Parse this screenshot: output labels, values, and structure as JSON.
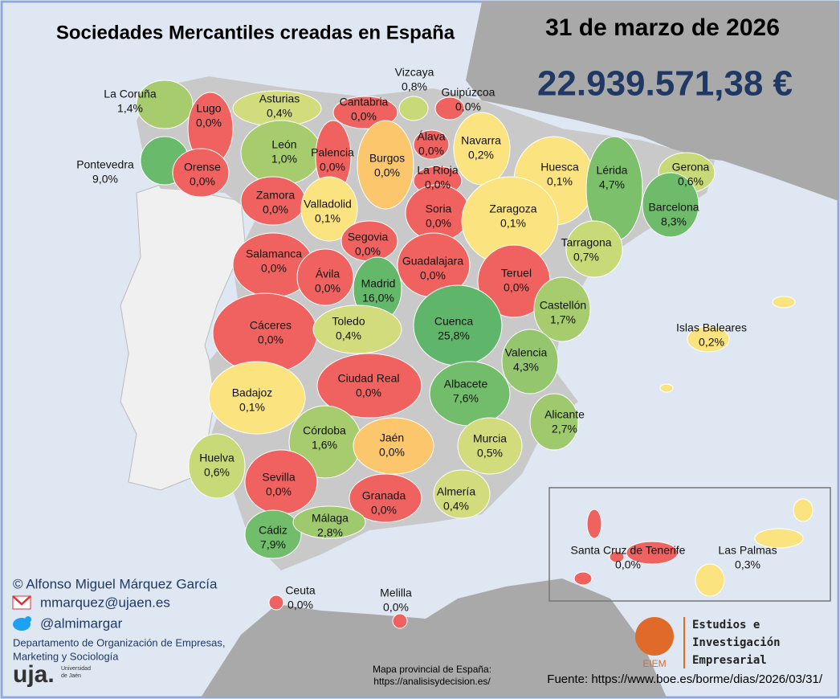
{
  "header": {
    "title": "Sociedades Mercantiles creadas en España",
    "date": "31 de marzo de 2026",
    "total": "22.939.571,38 €"
  },
  "provinces": [
    {
      "name": "La Coruña",
      "share": "1,4%",
      "color": "#a6cc6e"
    },
    {
      "name": "Lugo",
      "share": "0,0%",
      "color": "#f0625f"
    },
    {
      "name": "Asturias",
      "share": "0,4%",
      "color": "#d3dc7c"
    },
    {
      "name": "Cantabria",
      "share": "0,0%",
      "color": "#f0625f"
    },
    {
      "name": "Vizcaya",
      "share": "0,8%",
      "color": "#c8d978"
    },
    {
      "name": "Guipúzcoa",
      "share": "0,0%",
      "color": "#f0625f"
    },
    {
      "name": "Pontevedra",
      "share": "9,0%",
      "color": "#69ba6a"
    },
    {
      "name": "Orense",
      "share": "0,0%",
      "color": "#f0625f"
    },
    {
      "name": "León",
      "share": "1,0%",
      "color": "#a6cc6e"
    },
    {
      "name": "Palencia",
      "share": "0,0%",
      "color": "#f0625f"
    },
    {
      "name": "Burgos",
      "share": "0,0%",
      "color": "#fbc66c"
    },
    {
      "name": "Álava",
      "share": "0,0%",
      "color": "#f0625f"
    },
    {
      "name": "Navarra",
      "share": "0,2%",
      "color": "#fbe37f"
    },
    {
      "name": "La Rioja",
      "share": "0,0%",
      "color": "#f0625f"
    },
    {
      "name": "Huesca",
      "share": "0,1%",
      "color": "#fbe37f"
    },
    {
      "name": "Lérida",
      "share": "4,7%",
      "color": "#7cc06c"
    },
    {
      "name": "Gerona",
      "share": "0,6%",
      "color": "#c8d978"
    },
    {
      "name": "Barcelona",
      "share": "8,3%",
      "color": "#6dbb6b"
    },
    {
      "name": "Zamora",
      "share": "0,0%",
      "color": "#f0625f"
    },
    {
      "name": "Valladolid",
      "share": "0,1%",
      "color": "#fbe37f"
    },
    {
      "name": "Soria",
      "share": "0,0%",
      "color": "#f0625f"
    },
    {
      "name": "Zaragoza",
      "share": "0,1%",
      "color": "#fbe37f"
    },
    {
      "name": "Tarragona",
      "share": "0,7%",
      "color": "#c8d978"
    },
    {
      "name": "Segovia",
      "share": "0,0%",
      "color": "#f0625f"
    },
    {
      "name": "Salamanca",
      "share": "0,0%",
      "color": "#f0625f"
    },
    {
      "name": "Ávila",
      "share": "0,0%",
      "color": "#f0625f"
    },
    {
      "name": "Madrid",
      "share": "16,0%",
      "color": "#63b86a"
    },
    {
      "name": "Guadalajara",
      "share": "0,0%",
      "color": "#f0625f"
    },
    {
      "name": "Teruel",
      "share": "0,0%",
      "color": "#f0625f"
    },
    {
      "name": "Castellón",
      "share": "1,7%",
      "color": "#a6cc6e"
    },
    {
      "name": "Cáceres",
      "share": "0,0%",
      "color": "#f0625f"
    },
    {
      "name": "Toledo",
      "share": "0,4%",
      "color": "#d3dc7c"
    },
    {
      "name": "Cuenca",
      "share": "25,8%",
      "color": "#5fb66a"
    },
    {
      "name": "Islas Baleares",
      "share": "0,2%",
      "color": "#fbe37f"
    },
    {
      "name": "Valencia",
      "share": "4,3%",
      "color": "#94c76d"
    },
    {
      "name": "Ciudad Real",
      "share": "0,0%",
      "color": "#f0625f"
    },
    {
      "name": "Albacete",
      "share": "7,6%",
      "color": "#72bd6b"
    },
    {
      "name": "Badajoz",
      "share": "0,1%",
      "color": "#fbe37f"
    },
    {
      "name": "Alicante",
      "share": "2,7%",
      "color": "#9ec96d"
    },
    {
      "name": "Córdoba",
      "share": "1,6%",
      "color": "#a6cc6e"
    },
    {
      "name": "Jaén",
      "share": "0,0%",
      "color": "#fbc66c"
    },
    {
      "name": "Murcia",
      "share": "0,5%",
      "color": "#d3dc7c"
    },
    {
      "name": "Huelva",
      "share": "0,6%",
      "color": "#c8d978"
    },
    {
      "name": "Sevilla",
      "share": "0,0%",
      "color": "#f0625f"
    },
    {
      "name": "Granada",
      "share": "0,0%",
      "color": "#f0625f"
    },
    {
      "name": "Almería",
      "share": "0,4%",
      "color": "#d3dc7c"
    },
    {
      "name": "Cádiz",
      "share": "7,9%",
      "color": "#72bd6b"
    },
    {
      "name": "Málaga",
      "share": "2,8%",
      "color": "#9ec96d"
    },
    {
      "name": "Santa Cruz de Tenerife",
      "share": "0,0%",
      "color": "#f0625f"
    },
    {
      "name": "Las Palmas",
      "share": "0,3%",
      "color": "#fbe37f"
    },
    {
      "name": "Ceuta",
      "share": "0,0%",
      "color": "#f0625f"
    },
    {
      "name": "Melilla",
      "share": "0,0%",
      "color": "#f0625f"
    }
  ],
  "credits": {
    "author": "© Alfonso Miguel Márquez García",
    "email": "mmarquez@ujaen.es",
    "twitter": "@almimargar",
    "department": [
      "Departamento de Organización de Empresas,",
      "Marketing y Sociología"
    ],
    "university_logo": "uja.",
    "university_name": [
      "Universidad",
      "de Jaén"
    ]
  },
  "map_credit": [
    "Mapa provincial de España:",
    "https://analisisydecision.es/"
  ],
  "eiem": {
    "logo": "EIEM",
    "name": [
      "Estudios e",
      "Investigación",
      "Empresarial"
    ]
  },
  "source": "Fuente: https://www.boe.es/borme/dias/2026/03/31/"
}
